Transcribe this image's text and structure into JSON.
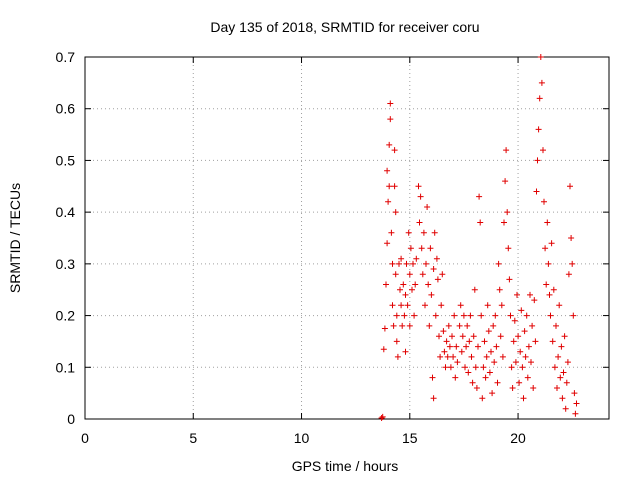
{
  "chart_data": {
    "type": "scatter",
    "title": "Day 135 of 2018, SRMTID for receiver coru",
    "xlabel": "GPS time / hours",
    "ylabel": "SRMTID / TECUs",
    "xlim": [
      0,
      24.2
    ],
    "ylim": [
      0,
      0.7
    ],
    "xticks": [
      0,
      5,
      10,
      15,
      20
    ],
    "xtick_labels": [
      "0",
      "5",
      "10",
      "15",
      "20"
    ],
    "yticks": [
      0,
      0.1,
      0.2,
      0.3,
      0.4,
      0.5,
      0.6,
      0.7
    ],
    "ytick_labels": [
      "0",
      "0.1",
      "0.2",
      "0.3",
      "0.4",
      "0.5",
      "0.6",
      "0.7"
    ],
    "grid": true,
    "marker": "plus",
    "color": "#e00000",
    "series": [
      {
        "name": "SRMTID",
        "points": [
          [
            13.7,
            0.002
          ],
          [
            13.75,
            0.004
          ],
          [
            13.8,
            0.135
          ],
          [
            13.85,
            0.175
          ],
          [
            13.9,
            0.26
          ],
          [
            13.95,
            0.34
          ],
          [
            14.0,
            0.42
          ],
          [
            13.95,
            0.48
          ],
          [
            14.05,
            0.53
          ],
          [
            14.1,
            0.61
          ],
          [
            14.1,
            0.58
          ],
          [
            14.05,
            0.45
          ],
          [
            14.15,
            0.36
          ],
          [
            14.2,
            0.3
          ],
          [
            14.2,
            0.22
          ],
          [
            14.25,
            0.18
          ],
          [
            14.3,
            0.52
          ],
          [
            14.3,
            0.45
          ],
          [
            14.35,
            0.4
          ],
          [
            14.35,
            0.28
          ],
          [
            14.4,
            0.2
          ],
          [
            14.4,
            0.15
          ],
          [
            14.45,
            0.12
          ],
          [
            14.5,
            0.3
          ],
          [
            14.55,
            0.25
          ],
          [
            14.6,
            0.31
          ],
          [
            14.6,
            0.22
          ],
          [
            14.65,
            0.18
          ],
          [
            14.7,
            0.26
          ],
          [
            14.75,
            0.2
          ],
          [
            14.8,
            0.24
          ],
          [
            14.8,
            0.13
          ],
          [
            14.85,
            0.3
          ],
          [
            14.9,
            0.22
          ],
          [
            14.95,
            0.36
          ],
          [
            15.0,
            0.28
          ],
          [
            15.0,
            0.18
          ],
          [
            15.05,
            0.33
          ],
          [
            15.1,
            0.25
          ],
          [
            15.15,
            0.3
          ],
          [
            15.2,
            0.2
          ],
          [
            15.25,
            0.26
          ],
          [
            15.3,
            0.31
          ],
          [
            15.4,
            0.45
          ],
          [
            15.45,
            0.38
          ],
          [
            15.5,
            0.43
          ],
          [
            15.55,
            0.33
          ],
          [
            15.6,
            0.28
          ],
          [
            15.65,
            0.36
          ],
          [
            15.7,
            0.22
          ],
          [
            15.75,
            0.3
          ],
          [
            15.8,
            0.41
          ],
          [
            15.85,
            0.26
          ],
          [
            15.9,
            0.18
          ],
          [
            15.95,
            0.33
          ],
          [
            16.0,
            0.24
          ],
          [
            16.05,
            0.08
          ],
          [
            16.1,
            0.04
          ],
          [
            16.1,
            0.29
          ],
          [
            16.15,
            0.36
          ],
          [
            16.2,
            0.2
          ],
          [
            16.25,
            0.31
          ],
          [
            16.3,
            0.27
          ],
          [
            16.35,
            0.16
          ],
          [
            16.4,
            0.12
          ],
          [
            16.45,
            0.22
          ],
          [
            16.5,
            0.28
          ],
          [
            16.55,
            0.17
          ],
          [
            16.6,
            0.13
          ],
          [
            16.65,
            0.1
          ],
          [
            16.7,
            0.15
          ],
          [
            16.75,
            0.12
          ],
          [
            16.8,
            0.18
          ],
          [
            16.85,
            0.14
          ],
          [
            16.9,
            0.1
          ],
          [
            16.95,
            0.16
          ],
          [
            17.0,
            0.12
          ],
          [
            17.05,
            0.2
          ],
          [
            17.1,
            0.08
          ],
          [
            17.15,
            0.14
          ],
          [
            17.2,
            0.11
          ],
          [
            17.3,
            0.18
          ],
          [
            17.35,
            0.22
          ],
          [
            17.4,
            0.13
          ],
          [
            17.45,
            0.16
          ],
          [
            17.5,
            0.2
          ],
          [
            17.55,
            0.1
          ],
          [
            17.6,
            0.14
          ],
          [
            17.65,
            0.18
          ],
          [
            17.7,
            0.09
          ],
          [
            17.75,
            0.15
          ],
          [
            17.8,
            0.2
          ],
          [
            17.85,
            0.12
          ],
          [
            17.9,
            0.07
          ],
          [
            17.95,
            0.16
          ],
          [
            18.0,
            0.25
          ],
          [
            18.05,
            0.1
          ],
          [
            18.1,
            0.06
          ],
          [
            18.15,
            0.14
          ],
          [
            18.2,
            0.43
          ],
          [
            18.25,
            0.38
          ],
          [
            18.3,
            0.2
          ],
          [
            18.35,
            0.04
          ],
          [
            18.4,
            0.1
          ],
          [
            18.45,
            0.15
          ],
          [
            18.5,
            0.08
          ],
          [
            18.55,
            0.12
          ],
          [
            18.6,
            0.22
          ],
          [
            18.65,
            0.17
          ],
          [
            18.7,
            0.09
          ],
          [
            18.75,
            0.13
          ],
          [
            18.8,
            0.05
          ],
          [
            18.85,
            0.18
          ],
          [
            18.9,
            0.11
          ],
          [
            18.95,
            0.2
          ],
          [
            19.0,
            0.14
          ],
          [
            19.05,
            0.07
          ],
          [
            19.1,
            0.3
          ],
          [
            19.15,
            0.25
          ],
          [
            19.2,
            0.16
          ],
          [
            19.25,
            0.22
          ],
          [
            19.3,
            0.12
          ],
          [
            19.35,
            0.38
          ],
          [
            19.4,
            0.46
          ],
          [
            19.45,
            0.52
          ],
          [
            19.5,
            0.4
          ],
          [
            19.55,
            0.33
          ],
          [
            19.6,
            0.27
          ],
          [
            19.65,
            0.2
          ],
          [
            19.7,
            0.1
          ],
          [
            19.75,
            0.06
          ],
          [
            19.8,
            0.15
          ],
          [
            19.85,
            0.19
          ],
          [
            19.9,
            0.11
          ],
          [
            19.95,
            0.24
          ],
          [
            20.0,
            0.16
          ],
          [
            20.05,
            0.07
          ],
          [
            20.1,
            0.13
          ],
          [
            20.15,
            0.21
          ],
          [
            20.2,
            0.1
          ],
          [
            20.25,
            0.04
          ],
          [
            20.3,
            0.17
          ],
          [
            20.35,
            0.12
          ],
          [
            20.4,
            0.2
          ],
          [
            20.45,
            0.08
          ],
          [
            20.5,
            0.14
          ],
          [
            20.55,
            0.24
          ],
          [
            20.6,
            0.11
          ],
          [
            20.65,
            0.18
          ],
          [
            20.7,
            0.06
          ],
          [
            20.75,
            0.23
          ],
          [
            20.8,
            0.15
          ],
          [
            20.85,
            0.44
          ],
          [
            20.9,
            0.5
          ],
          [
            20.95,
            0.56
          ],
          [
            21.0,
            0.62
          ],
          [
            21.05,
            0.7
          ],
          [
            21.1,
            0.65
          ],
          [
            21.15,
            0.52
          ],
          [
            21.2,
            0.42
          ],
          [
            21.25,
            0.33
          ],
          [
            21.3,
            0.26
          ],
          [
            21.35,
            0.38
          ],
          [
            21.4,
            0.3
          ],
          [
            21.45,
            0.24
          ],
          [
            21.5,
            0.2
          ],
          [
            21.55,
            0.34
          ],
          [
            21.6,
            0.15
          ],
          [
            21.65,
            0.25
          ],
          [
            21.7,
            0.1
          ],
          [
            21.75,
            0.18
          ],
          [
            21.8,
            0.06
          ],
          [
            21.85,
            0.12
          ],
          [
            21.9,
            0.22
          ],
          [
            21.95,
            0.08
          ],
          [
            22.0,
            0.14
          ],
          [
            22.05,
            0.04
          ],
          [
            22.1,
            0.09
          ],
          [
            22.15,
            0.16
          ],
          [
            22.2,
            0.02
          ],
          [
            22.25,
            0.07
          ],
          [
            22.3,
            0.11
          ],
          [
            22.35,
            0.28
          ],
          [
            22.4,
            0.45
          ],
          [
            22.45,
            0.35
          ],
          [
            22.5,
            0.3
          ],
          [
            22.55,
            0.2
          ],
          [
            22.6,
            0.05
          ],
          [
            22.65,
            0.01
          ],
          [
            22.7,
            0.03
          ]
        ]
      }
    ]
  }
}
